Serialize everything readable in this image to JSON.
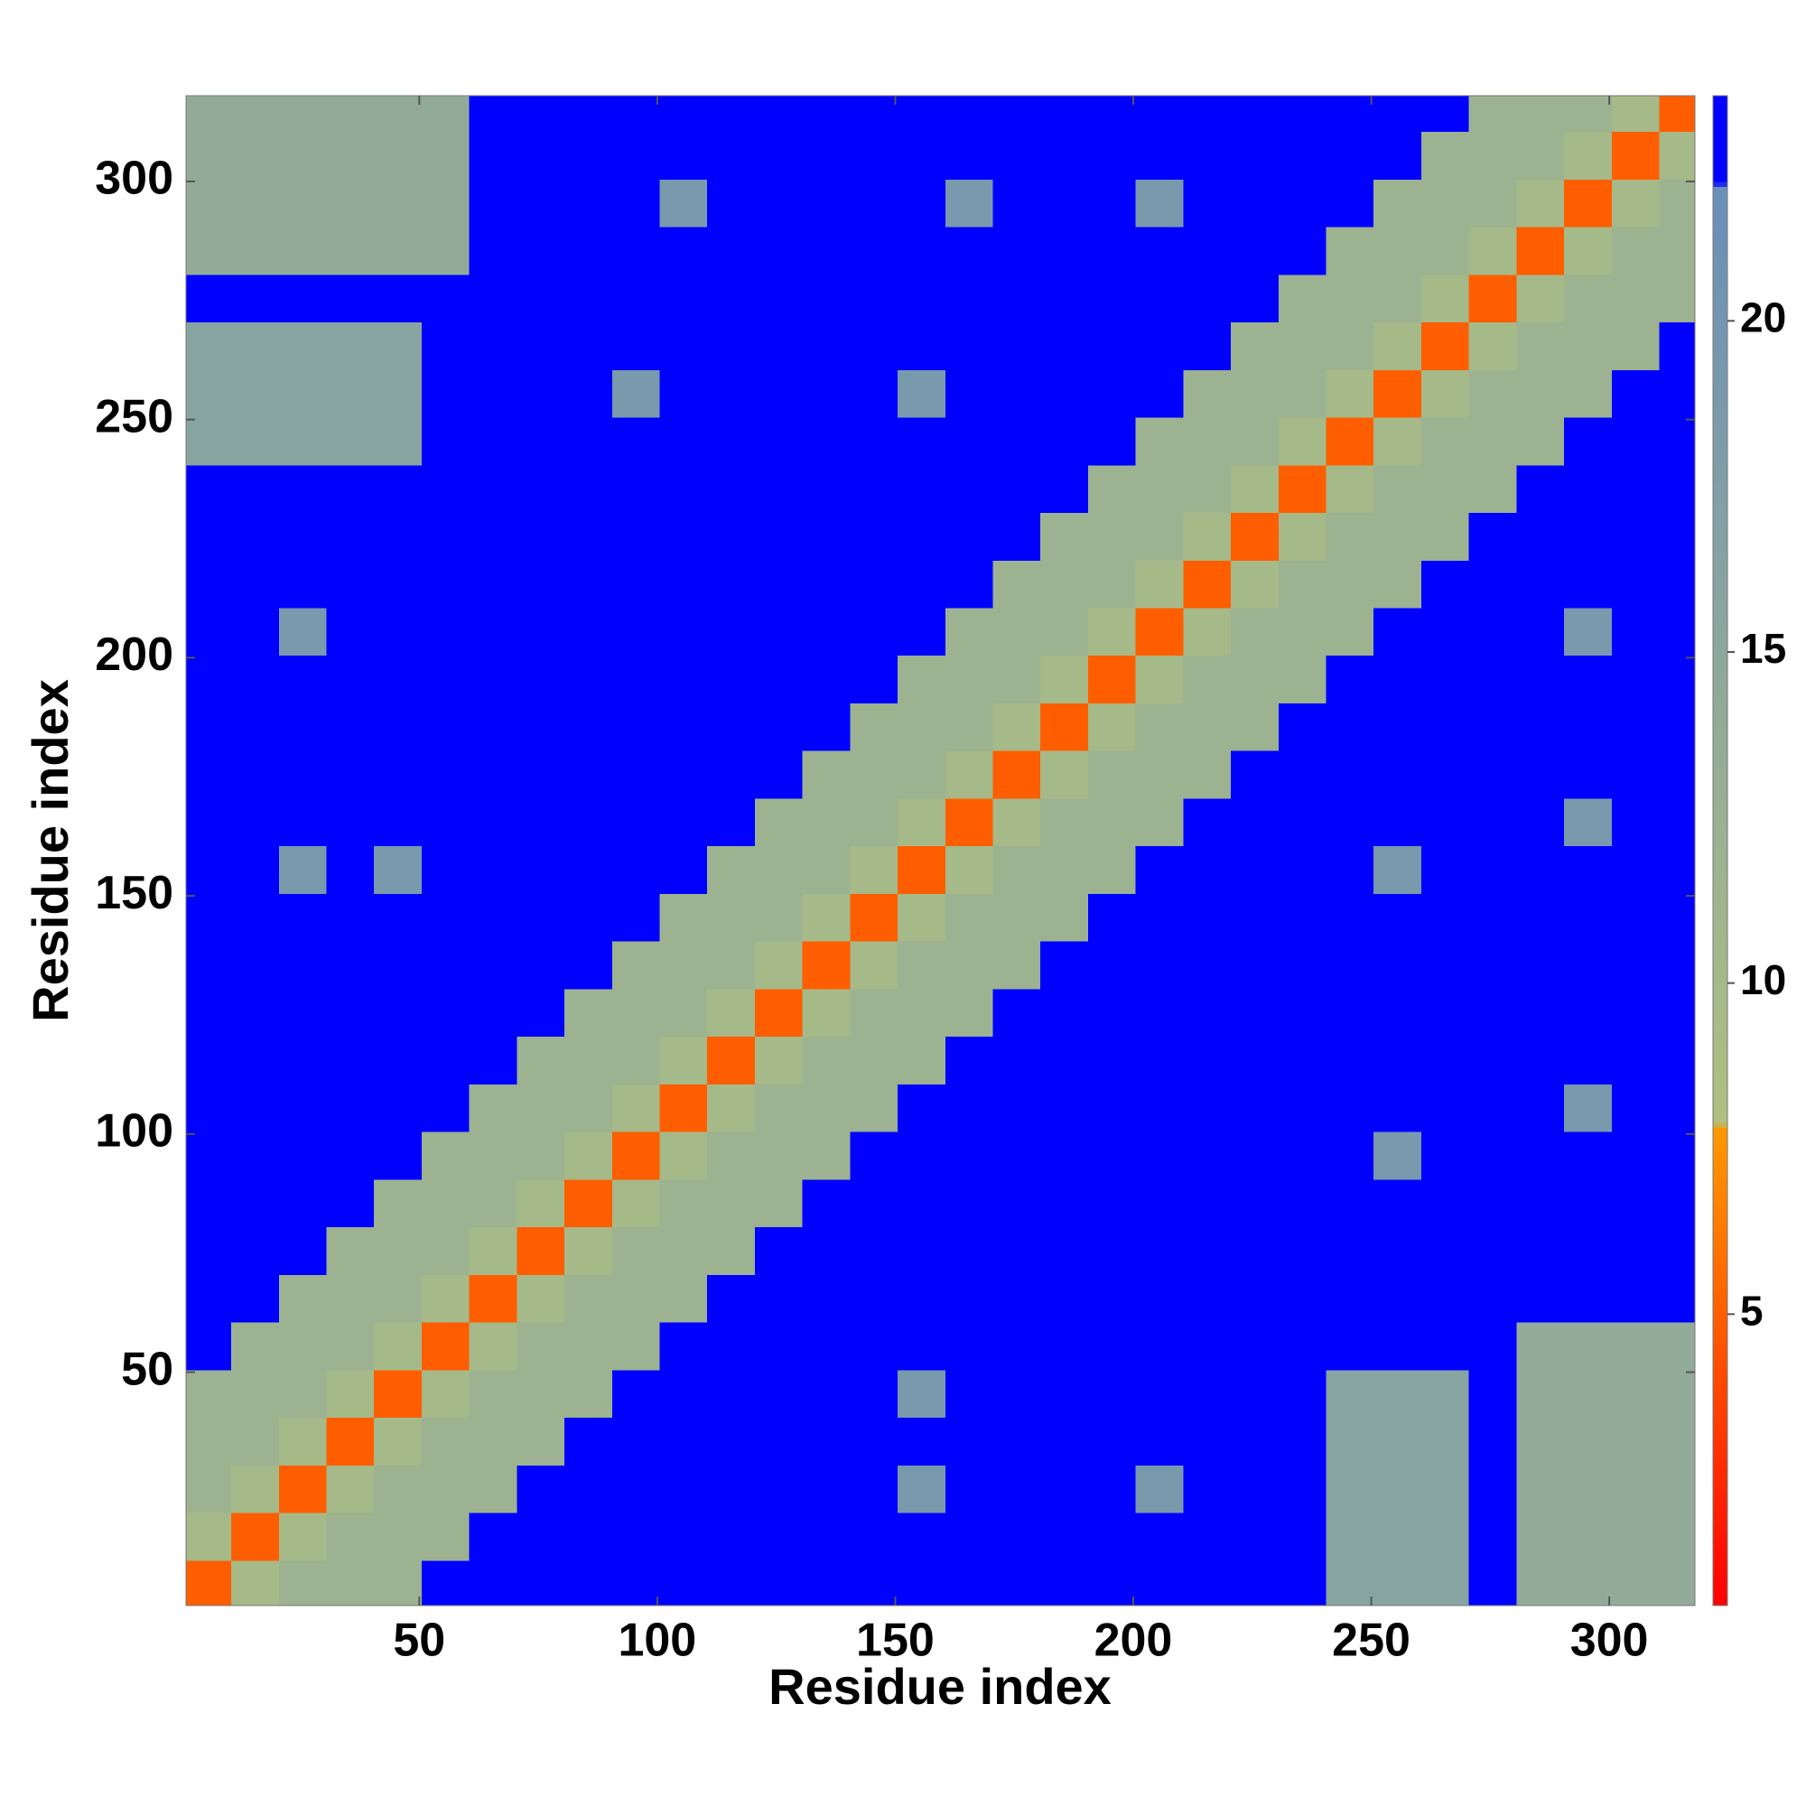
{
  "chart_data": {
    "type": "heatmap",
    "xlabel": "Residue index",
    "ylabel": "Residue index",
    "xlim": [
      1,
      318
    ],
    "ylim": [
      1,
      318
    ],
    "xticks": [
      50,
      100,
      150,
      200,
      250,
      300
    ],
    "yticks": [
      50,
      100,
      150,
      200,
      250,
      300
    ],
    "zlim": [
      0.6,
      23.4
    ],
    "zticks": [
      5,
      10,
      15,
      20
    ],
    "colorscale": [
      {
        "value": 0.6,
        "color": "#ff0000"
      },
      {
        "value": 7.8,
        "color": "#ff9900"
      },
      {
        "value": 7.9,
        "color": "#b0c080"
      },
      {
        "value": 22.0,
        "color": "#6a8fb8"
      },
      {
        "value": 22.1,
        "color": "#0000ff"
      },
      {
        "value": 23.4,
        "color": "#0000ff"
      }
    ],
    "x": [
      5.5,
      15.5,
      25.5,
      35.5,
      45.5,
      55.5,
      65.5,
      75.5,
      85.5,
      95.5,
      105.5,
      115.5,
      125.5,
      135.5,
      145.5,
      155.5,
      165.5,
      175.5,
      185.5,
      195.5,
      205.5,
      215.5,
      225.5,
      235.5,
      245.5,
      255.5,
      265.5,
      275.5,
      285.5,
      295.5,
      305.5,
      315.5
    ],
    "y": [
      5.5,
      15.5,
      25.5,
      35.5,
      45.5,
      55.5,
      65.5,
      75.5,
      85.5,
      95.5,
      105.5,
      115.5,
      125.5,
      135.5,
      145.5,
      155.5,
      165.5,
      175.5,
      185.5,
      195.5,
      205.5,
      215.5,
      225.5,
      235.5,
      245.5,
      255.5,
      265.5,
      275.5,
      285.5,
      295.5,
      305.5,
      315.5
    ],
    "z": [
      [
        5,
        10,
        12,
        12,
        12,
        23,
        23,
        23,
        23,
        23,
        23,
        23,
        23,
        23,
        23,
        23,
        23,
        23,
        23,
        23,
        23,
        23,
        23,
        23,
        16,
        16,
        16,
        23,
        14,
        14,
        14,
        14
      ],
      [
        10,
        5,
        10,
        12,
        12,
        12,
        23,
        23,
        23,
        23,
        23,
        23,
        23,
        23,
        23,
        23,
        23,
        23,
        23,
        23,
        23,
        23,
        23,
        23,
        16,
        16,
        16,
        23,
        14,
        14,
        14,
        14
      ],
      [
        12,
        10,
        5,
        10,
        12,
        12,
        12,
        23,
        23,
        23,
        23,
        23,
        23,
        23,
        23,
        19,
        23,
        23,
        23,
        23,
        19,
        23,
        23,
        23,
        16,
        16,
        16,
        23,
        14,
        14,
        14,
        14
      ],
      [
        12,
        12,
        10,
        5,
        10,
        12,
        12,
        12,
        23,
        23,
        23,
        23,
        23,
        23,
        23,
        23,
        23,
        23,
        23,
        23,
        23,
        23,
        23,
        23,
        16,
        16,
        16,
        23,
        14,
        14,
        14,
        14
      ],
      [
        12,
        12,
        12,
        10,
        5,
        10,
        12,
        12,
        12,
        23,
        23,
        23,
        23,
        23,
        23,
        19,
        23,
        23,
        23,
        23,
        23,
        23,
        23,
        23,
        16,
        16,
        16,
        23,
        14,
        14,
        14,
        14
      ],
      [
        23,
        12,
        12,
        12,
        10,
        5,
        10,
        12,
        12,
        12,
        23,
        23,
        23,
        23,
        23,
        23,
        23,
        23,
        23,
        23,
        23,
        23,
        23,
        23,
        23,
        23,
        23,
        23,
        14,
        14,
        14,
        14
      ],
      [
        23,
        23,
        12,
        12,
        12,
        10,
        5,
        10,
        12,
        12,
        12,
        23,
        23,
        23,
        23,
        23,
        23,
        23,
        23,
        23,
        23,
        23,
        23,
        23,
        23,
        23,
        23,
        23,
        23,
        23,
        23,
        23
      ],
      [
        23,
        23,
        23,
        12,
        12,
        12,
        10,
        5,
        10,
        12,
        12,
        12,
        23,
        23,
        23,
        23,
        23,
        23,
        23,
        23,
        23,
        23,
        23,
        23,
        23,
        23,
        23,
        23,
        23,
        23,
        23,
        23
      ],
      [
        23,
        23,
        23,
        23,
        12,
        12,
        12,
        10,
        5,
        10,
        12,
        12,
        12,
        23,
        23,
        23,
        23,
        23,
        23,
        23,
        23,
        23,
        23,
        23,
        23,
        23,
        23,
        23,
        23,
        23,
        23,
        23
      ],
      [
        23,
        23,
        23,
        23,
        23,
        12,
        12,
        12,
        10,
        5,
        10,
        12,
        12,
        12,
        23,
        23,
        23,
        23,
        23,
        23,
        23,
        23,
        23,
        23,
        23,
        19,
        23,
        23,
        23,
        23,
        23,
        23
      ],
      [
        23,
        23,
        23,
        23,
        23,
        23,
        12,
        12,
        12,
        10,
        5,
        10,
        12,
        12,
        12,
        23,
        23,
        23,
        23,
        23,
        23,
        23,
        23,
        23,
        23,
        23,
        23,
        23,
        23,
        19,
        23,
        23
      ],
      [
        23,
        23,
        23,
        23,
        23,
        23,
        23,
        12,
        12,
        12,
        10,
        5,
        10,
        12,
        12,
        12,
        23,
        23,
        23,
        23,
        23,
        23,
        23,
        23,
        23,
        23,
        23,
        23,
        23,
        23,
        23,
        23
      ],
      [
        23,
        23,
        23,
        23,
        23,
        23,
        23,
        23,
        12,
        12,
        12,
        10,
        5,
        10,
        12,
        12,
        12,
        23,
        23,
        23,
        23,
        23,
        23,
        23,
        23,
        23,
        23,
        23,
        23,
        23,
        23,
        23
      ],
      [
        23,
        23,
        23,
        23,
        23,
        23,
        23,
        23,
        23,
        12,
        12,
        12,
        10,
        5,
        10,
        12,
        12,
        12,
        23,
        23,
        23,
        23,
        23,
        23,
        23,
        23,
        23,
        23,
        23,
        23,
        23,
        23
      ],
      [
        23,
        23,
        23,
        23,
        23,
        23,
        23,
        23,
        23,
        23,
        12,
        12,
        12,
        10,
        5,
        10,
        12,
        12,
        12,
        23,
        23,
        23,
        23,
        23,
        23,
        23,
        23,
        23,
        23,
        23,
        23,
        23
      ],
      [
        23,
        23,
        19,
        23,
        19,
        23,
        23,
        23,
        23,
        23,
        23,
        12,
        12,
        12,
        10,
        5,
        10,
        12,
        12,
        12,
        23,
        23,
        23,
        23,
        23,
        19,
        23,
        23,
        23,
        23,
        23,
        23
      ],
      [
        23,
        23,
        23,
        23,
        23,
        23,
        23,
        23,
        23,
        23,
        23,
        23,
        12,
        12,
        12,
        10,
        5,
        10,
        12,
        12,
        12,
        23,
        23,
        23,
        23,
        23,
        23,
        23,
        23,
        19,
        23,
        23
      ],
      [
        23,
        23,
        23,
        23,
        23,
        23,
        23,
        23,
        23,
        23,
        23,
        23,
        23,
        12,
        12,
        12,
        10,
        5,
        10,
        12,
        12,
        12,
        23,
        23,
        23,
        23,
        23,
        23,
        23,
        23,
        23,
        23
      ],
      [
        23,
        23,
        23,
        23,
        23,
        23,
        23,
        23,
        23,
        23,
        23,
        23,
        23,
        23,
        12,
        12,
        12,
        10,
        5,
        10,
        12,
        12,
        12,
        23,
        23,
        23,
        23,
        23,
        23,
        23,
        23,
        23
      ],
      [
        23,
        23,
        23,
        23,
        23,
        23,
        23,
        23,
        23,
        23,
        23,
        23,
        23,
        23,
        23,
        12,
        12,
        12,
        10,
        5,
        10,
        12,
        12,
        12,
        23,
        23,
        23,
        23,
        23,
        23,
        23,
        23
      ],
      [
        23,
        23,
        19,
        23,
        23,
        23,
        23,
        23,
        23,
        23,
        23,
        23,
        23,
        23,
        23,
        23,
        12,
        12,
        12,
        10,
        5,
        10,
        12,
        12,
        12,
        23,
        23,
        23,
        23,
        19,
        23,
        23
      ],
      [
        23,
        23,
        23,
        23,
        23,
        23,
        23,
        23,
        23,
        23,
        23,
        23,
        23,
        23,
        23,
        23,
        23,
        12,
        12,
        12,
        10,
        5,
        10,
        12,
        12,
        12,
        23,
        23,
        23,
        23,
        23,
        23
      ],
      [
        23,
        23,
        23,
        23,
        23,
        23,
        23,
        23,
        23,
        23,
        23,
        23,
        23,
        23,
        23,
        23,
        23,
        23,
        12,
        12,
        12,
        10,
        5,
        10,
        12,
        12,
        12,
        23,
        23,
        23,
        23,
        23
      ],
      [
        23,
        23,
        23,
        23,
        23,
        23,
        23,
        23,
        23,
        23,
        23,
        23,
        23,
        23,
        23,
        23,
        23,
        23,
        23,
        12,
        12,
        12,
        10,
        5,
        10,
        12,
        12,
        12,
        23,
        23,
        23,
        23
      ],
      [
        16,
        16,
        16,
        16,
        16,
        23,
        23,
        23,
        23,
        23,
        23,
        23,
        23,
        23,
        23,
        23,
        23,
        23,
        23,
        23,
        12,
        12,
        12,
        10,
        5,
        10,
        12,
        12,
        12,
        23,
        23,
        23
      ],
      [
        16,
        16,
        16,
        16,
        16,
        23,
        23,
        23,
        23,
        19,
        23,
        23,
        23,
        23,
        23,
        19,
        23,
        23,
        23,
        23,
        23,
        12,
        12,
        12,
        10,
        5,
        10,
        12,
        12,
        12,
        23,
        23
      ],
      [
        16,
        16,
        16,
        16,
        16,
        23,
        23,
        23,
        23,
        23,
        23,
        23,
        23,
        23,
        23,
        23,
        23,
        23,
        23,
        23,
        23,
        23,
        12,
        12,
        12,
        10,
        5,
        10,
        12,
        12,
        12,
        23
      ],
      [
        23,
        23,
        23,
        23,
        23,
        23,
        23,
        23,
        23,
        23,
        23,
        23,
        23,
        23,
        23,
        23,
        23,
        23,
        23,
        23,
        23,
        23,
        23,
        12,
        12,
        12,
        10,
        5,
        10,
        12,
        12,
        12
      ],
      [
        14,
        14,
        14,
        14,
        14,
        14,
        23,
        23,
        23,
        23,
        23,
        23,
        23,
        23,
        23,
        23,
        23,
        23,
        23,
        23,
        23,
        23,
        23,
        23,
        12,
        12,
        12,
        10,
        5,
        10,
        12,
        12
      ],
      [
        14,
        14,
        14,
        14,
        14,
        14,
        23,
        23,
        23,
        23,
        19,
        23,
        23,
        23,
        23,
        23,
        19,
        23,
        23,
        23,
        19,
        23,
        23,
        23,
        23,
        12,
        12,
        12,
        10,
        5,
        10,
        12
      ],
      [
        14,
        14,
        14,
        14,
        14,
        14,
        23,
        23,
        23,
        23,
        23,
        23,
        23,
        23,
        23,
        23,
        23,
        23,
        23,
        23,
        23,
        23,
        23,
        23,
        23,
        23,
        12,
        12,
        12,
        10,
        5,
        10
      ],
      [
        14,
        14,
        14,
        14,
        14,
        14,
        23,
        23,
        23,
        23,
        23,
        23,
        23,
        23,
        23,
        23,
        23,
        23,
        23,
        23,
        23,
        23,
        23,
        23,
        23,
        23,
        23,
        12,
        12,
        12,
        10,
        5
      ]
    ]
  }
}
